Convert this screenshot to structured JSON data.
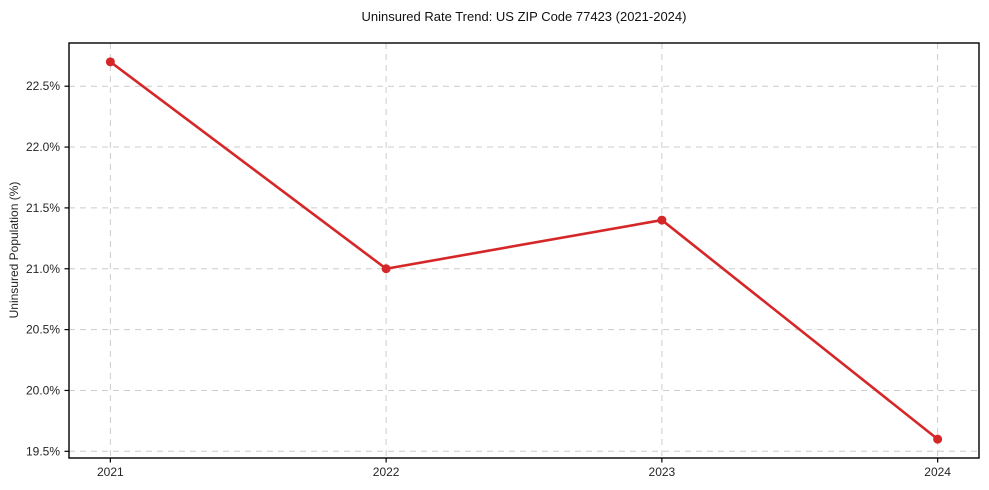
{
  "chart_data": {
    "type": "line",
    "title": "Uninsured Rate Trend: US ZIP Code 77423 (2021-2024)",
    "xlabel": "",
    "ylabel": "Uninsured Population (%)",
    "x": [
      2021,
      2022,
      2023,
      2024
    ],
    "values": [
      22.7,
      21.0,
      21.4,
      19.6
    ],
    "xticks": [
      2021,
      2022,
      2023,
      2024
    ],
    "xtick_labels": [
      "2021",
      "2022",
      "2023",
      "2024"
    ],
    "yticks": [
      19.5,
      20.0,
      20.5,
      21.0,
      21.5,
      22.0,
      22.5
    ],
    "ytick_labels": [
      "19.5%",
      "20.0%",
      "20.5%",
      "21.0%",
      "21.5%",
      "22.0%",
      "22.5%"
    ],
    "xlim": [
      2020.85,
      2024.15
    ],
    "ylim": [
      19.445,
      22.855
    ],
    "grid": true,
    "grid_style": "dashed",
    "legend": false,
    "marker": "circle",
    "colors": {
      "line": "#d62728",
      "marker": "#d62728",
      "grid": "#cccccc",
      "spine": "#000000",
      "tick_label": "#262626",
      "title": "#111111",
      "background": "#ffffff"
    }
  },
  "layout_note": "single line chart, no legend"
}
